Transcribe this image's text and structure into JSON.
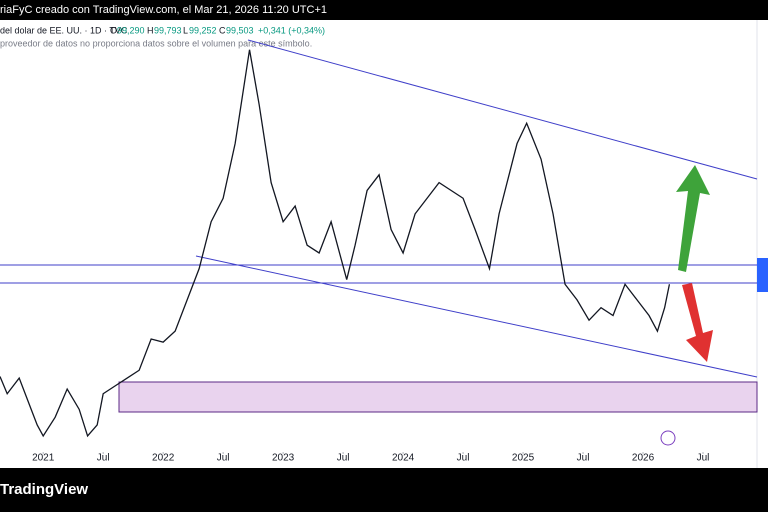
{
  "header": {
    "credit": "riaFyC creado con TradingView.com, el Mar 21, 2026 11:20 UTC+1",
    "symbol": "del dolar de EE. UU. · 1D · TVC",
    "open_label": "O",
    "open": "99,290",
    "high_label": "H",
    "high": "99,793",
    "low_label": "L",
    "low": "99,252",
    "close_label": "C",
    "close": "99,503",
    "change": "+0,341 (+0,34%)",
    "notice": "proveedor de datos no proporciona datos sobre el volumen para este símbolo."
  },
  "footer": {
    "brand": "TradingView"
  },
  "chart_data": {
    "type": "line",
    "color": "#131722",
    "x": [
      2020.64,
      2020.7,
      2020.8,
      2020.9,
      2020.95,
      2021.0,
      2021.1,
      2021.2,
      2021.3,
      2021.37,
      2021.45,
      2021.5,
      2021.6,
      2021.7,
      2021.8,
      2021.9,
      2022.0,
      2022.1,
      2022.2,
      2022.3,
      2022.4,
      2022.5,
      2022.6,
      2022.72,
      2022.8,
      2022.9,
      2023.0,
      2023.1,
      2023.2,
      2023.3,
      2023.4,
      2023.53,
      2023.6,
      2023.7,
      2023.8,
      2023.9,
      2024.0,
      2024.1,
      2024.3,
      2024.5,
      2024.6,
      2024.72,
      2024.8,
      2024.95,
      2025.03,
      2025.15,
      2025.25,
      2025.35,
      2025.45,
      2025.55,
      2025.65,
      2025.75,
      2025.85,
      2025.95,
      2026.05,
      2026.12,
      2026.18,
      2026.22
    ],
    "values": [
      93.6,
      92.5,
      93.5,
      91.5,
      90.5,
      89.8,
      91,
      92.8,
      91.5,
      89.8,
      90.5,
      92.5,
      93,
      93.5,
      94,
      96,
      95.8,
      96.5,
      98.5,
      100.5,
      103.5,
      105,
      108.5,
      114.5,
      111,
      106,
      103.5,
      104.5,
      102,
      101.5,
      103.5,
      99.8,
      102,
      105.5,
      106.5,
      103,
      101.5,
      104,
      106,
      105,
      103,
      100.5,
      104,
      108.5,
      109.8,
      107.5,
      104,
      99.5,
      98.5,
      97.2,
      98,
      97.5,
      99.5,
      98.5,
      97.5,
      96.5,
      98,
      99.5
    ],
    "xlim": [
      2020.64,
      2026.95
    ],
    "xticks": [
      2021,
      {
        "value": 2021.5,
        "label": "Jul"
      },
      2022,
      {
        "value": 2022.5,
        "label": "Jul"
      },
      2023,
      {
        "value": 2023.5,
        "label": "Jul"
      },
      2024,
      {
        "value": 2024.5,
        "label": "Jul"
      },
      2025,
      {
        "value": 2025.5,
        "label": "Jul"
      },
      2026,
      {
        "value": 2026.5,
        "label": "Jul"
      }
    ],
    "ylim": [
      88.9,
      116.4
    ]
  }
}
